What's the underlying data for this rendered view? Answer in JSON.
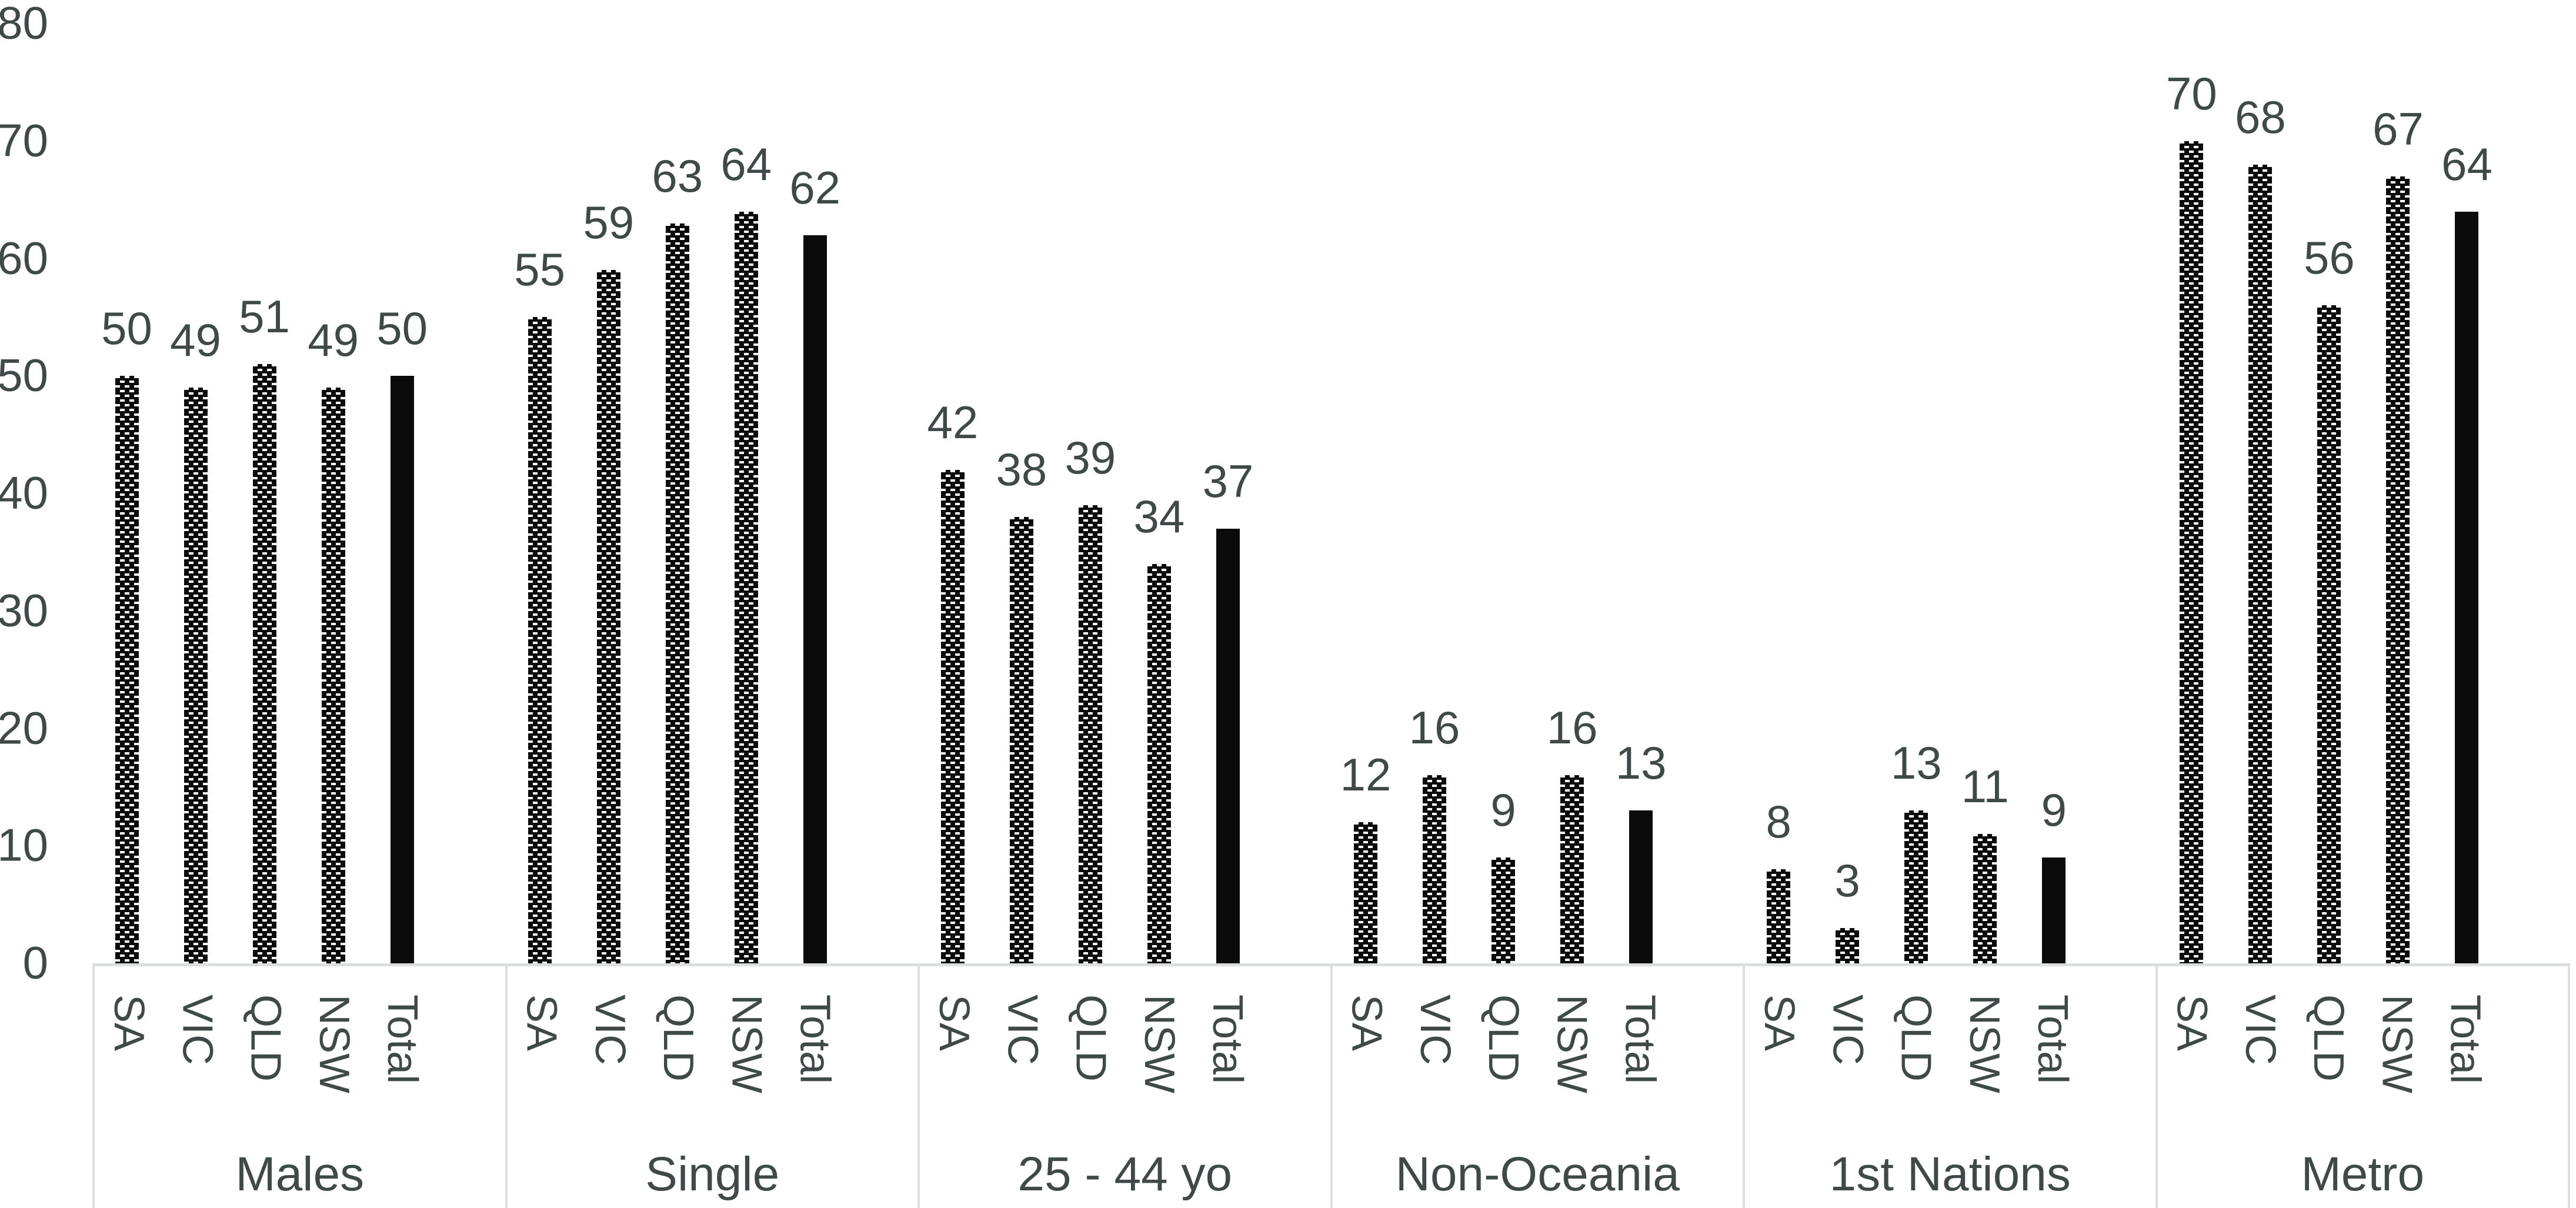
{
  "colors": {
    "text": "#3f4a48",
    "axis_line": "#dbe0df",
    "bar_fill": "#0b0b0b",
    "background": "#ffffff"
  },
  "chart_data": {
    "type": "bar",
    "title": "",
    "xlabel": "",
    "ylabel": "",
    "ylim": [
      0,
      80
    ],
    "yticks": [
      0,
      10,
      20,
      30,
      40,
      50,
      60,
      70,
      80
    ],
    "gridlines": false,
    "legend_position": "none",
    "bar_styles": [
      "checker-pattern",
      "checker-pattern",
      "checker-pattern",
      "checker-pattern",
      "solid-black"
    ],
    "sub_categories": [
      "SA",
      "VIC",
      "QLD",
      "NSW",
      "Total"
    ],
    "groups": [
      {
        "label": "Males",
        "values": [
          50,
          49,
          51,
          49,
          50
        ]
      },
      {
        "label": "Single",
        "values": [
          55,
          59,
          63,
          64,
          62
        ]
      },
      {
        "label": "25 - 44 yo",
        "values": [
          42,
          38,
          39,
          34,
          37
        ]
      },
      {
        "label": "Non-Oceania",
        "values": [
          12,
          16,
          9,
          16,
          13
        ]
      },
      {
        "label": "1st Nations",
        "values": [
          8,
          3,
          13,
          11,
          9
        ]
      },
      {
        "label": "Metro",
        "values": [
          70,
          68,
          56,
          67,
          64
        ]
      }
    ]
  }
}
